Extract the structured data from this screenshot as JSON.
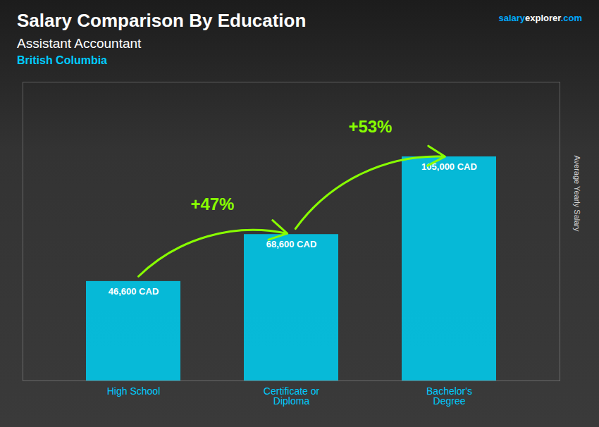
{
  "chart_data": {
    "type": "bar",
    "title": "Salary Comparison By Education",
    "subtitle": "Assistant Accountant",
    "location": "British Columbia",
    "watermark": [
      "salary",
      "explorer",
      ".com"
    ],
    "ylabel": "Average Yearly Salary",
    "categories": [
      "High School",
      "Certificate or\nDiploma",
      "Bachelor's\nDegree"
    ],
    "values": [
      46600,
      68600,
      105000
    ],
    "value_labels": [
      "46,600 CAD",
      "68,600 CAD",
      "105,000 CAD"
    ],
    "data_labels": true,
    "annotations": [
      "+47%",
      "+53%"
    ],
    "color": "#00ccee",
    "ylim": [
      0,
      140000
    ],
    "tick_labels": "x"
  }
}
